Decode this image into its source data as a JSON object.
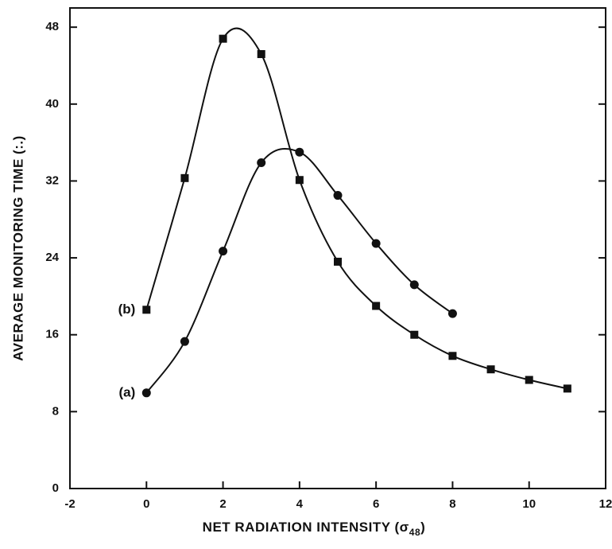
{
  "chart_data": {
    "type": "line",
    "xlabel": [
      "NET RADIATION INTENSITY (σ",
      "48",
      ")"
    ],
    "ylabel": "AVERAGE MONITORING TIME (:.)",
    "xlim": [
      -2,
      12
    ],
    "xticks": [
      -2,
      0,
      2,
      4,
      6,
      8,
      10,
      12
    ],
    "ylim": [
      0,
      50
    ],
    "yticks": [
      0,
      8,
      16,
      24,
      32,
      40,
      48
    ],
    "grid": false,
    "series": [
      {
        "name": "(b)",
        "color": "#111111",
        "marker": "square",
        "x": [
          0,
          1,
          2,
          3,
          4,
          5,
          6,
          7,
          8,
          9,
          10,
          11
        ],
        "values": [
          18.6,
          32.3,
          46.8,
          45.2,
          32.1,
          23.6,
          19.0,
          16.0,
          13.8,
          12.4,
          11.3,
          10.4
        ]
      },
      {
        "name": "(a)",
        "color": "#111111",
        "marker": "circle",
        "x": [
          0,
          1,
          2,
          3,
          4,
          5,
          6,
          7,
          8
        ],
        "values": [
          9.95,
          15.3,
          24.7,
          33.9,
          35.0,
          30.5,
          25.5,
          21.2,
          18.2
        ]
      }
    ]
  }
}
